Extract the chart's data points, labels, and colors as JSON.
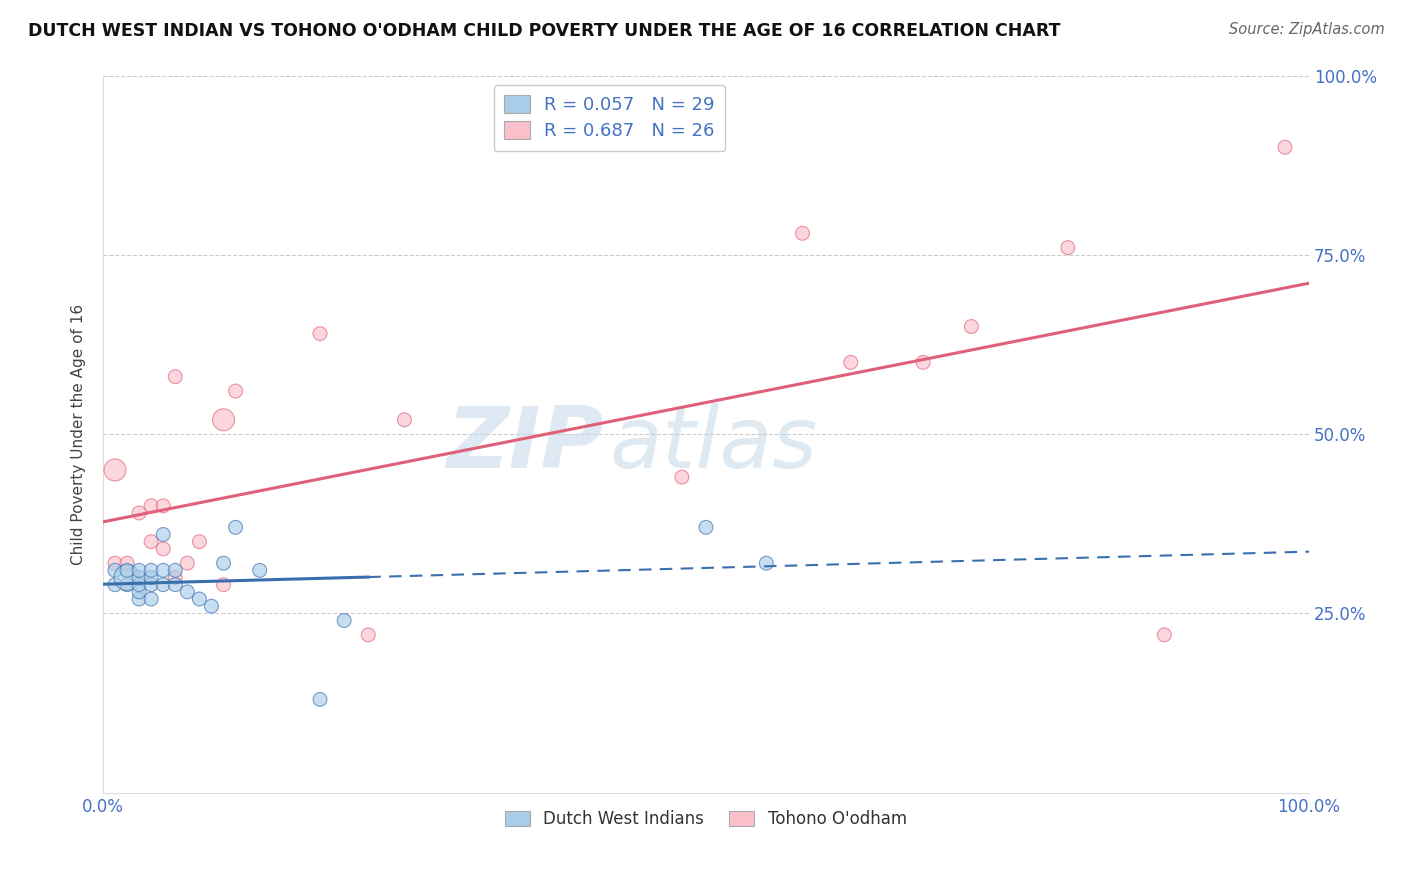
{
  "title": "DUTCH WEST INDIAN VS TOHONO O'ODHAM CHILD POVERTY UNDER THE AGE OF 16 CORRELATION CHART",
  "source": "Source: ZipAtlas.com",
  "ylabel": "Child Poverty Under the Age of 16",
  "xlim": [
    0,
    1
  ],
  "ylim": [
    0,
    1
  ],
  "xticks": [
    0.0,
    0.25,
    0.5,
    0.75,
    1.0
  ],
  "yticks": [
    0.0,
    0.25,
    0.5,
    0.75,
    1.0
  ],
  "xtick_labels": [
    "0.0%",
    "",
    "",
    "",
    "100.0%"
  ],
  "ytick_labels": [
    "",
    "25.0%",
    "50.0%",
    "75.0%",
    "100.0%"
  ],
  "watermark_zip": "ZIP",
  "watermark_atlas": "atlas",
  "legend_r1": "R = 0.057",
  "legend_n1": "N = 29",
  "legend_r2": "R = 0.687",
  "legend_n2": "N = 26",
  "legend_label1": "Dutch West Indians",
  "legend_label2": "Tohono O'odham",
  "color_blue": "#a8cde8",
  "color_pink": "#f9c0cc",
  "line_color_blue": "#3a6fad",
  "line_color_pink": "#e0607a",
  "background": "#ffffff",
  "blue_x": [
    0.01,
    0.01,
    0.02,
    0.02,
    0.02,
    0.03,
    0.03,
    0.03,
    0.03,
    0.03,
    0.04,
    0.04,
    0.04,
    0.04,
    0.05,
    0.05,
    0.05,
    0.06,
    0.06,
    0.07,
    0.08,
    0.09,
    0.1,
    0.11,
    0.13,
    0.18,
    0.2,
    0.5,
    0.55
  ],
  "blue_y": [
    0.29,
    0.31,
    0.29,
    0.3,
    0.31,
    0.27,
    0.28,
    0.29,
    0.3,
    0.31,
    0.27,
    0.29,
    0.3,
    0.31,
    0.29,
    0.31,
    0.36,
    0.29,
    0.31,
    0.28,
    0.27,
    0.26,
    0.32,
    0.37,
    0.31,
    0.13,
    0.24,
    0.37,
    0.32
  ],
  "blue_sizes": [
    100,
    100,
    100,
    350,
    100,
    100,
    100,
    100,
    100,
    100,
    100,
    100,
    100,
    100,
    100,
    100,
    100,
    100,
    100,
    100,
    100,
    100,
    100,
    100,
    100,
    100,
    100,
    100,
    100
  ],
  "pink_x": [
    0.01,
    0.01,
    0.02,
    0.03,
    0.04,
    0.04,
    0.05,
    0.05,
    0.06,
    0.06,
    0.07,
    0.08,
    0.1,
    0.1,
    0.11,
    0.18,
    0.22,
    0.25,
    0.48,
    0.58,
    0.62,
    0.68,
    0.72,
    0.8,
    0.88,
    0.98
  ],
  "pink_y": [
    0.32,
    0.45,
    0.32,
    0.39,
    0.35,
    0.4,
    0.34,
    0.4,
    0.3,
    0.58,
    0.32,
    0.35,
    0.29,
    0.52,
    0.56,
    0.64,
    0.22,
    0.52,
    0.44,
    0.78,
    0.6,
    0.6,
    0.65,
    0.76,
    0.22,
    0.9
  ],
  "pink_sizes": [
    100,
    250,
    100,
    100,
    100,
    100,
    100,
    100,
    100,
    100,
    100,
    100,
    100,
    250,
    100,
    100,
    100,
    100,
    100,
    100,
    100,
    100,
    100,
    100,
    100,
    100
  ],
  "blue_line_x_start": 0.0,
  "blue_line_x_solid_end": 0.22,
  "blue_line_x_end": 1.0,
  "pink_line_x_start": 0.0,
  "pink_line_x_end": 1.0
}
